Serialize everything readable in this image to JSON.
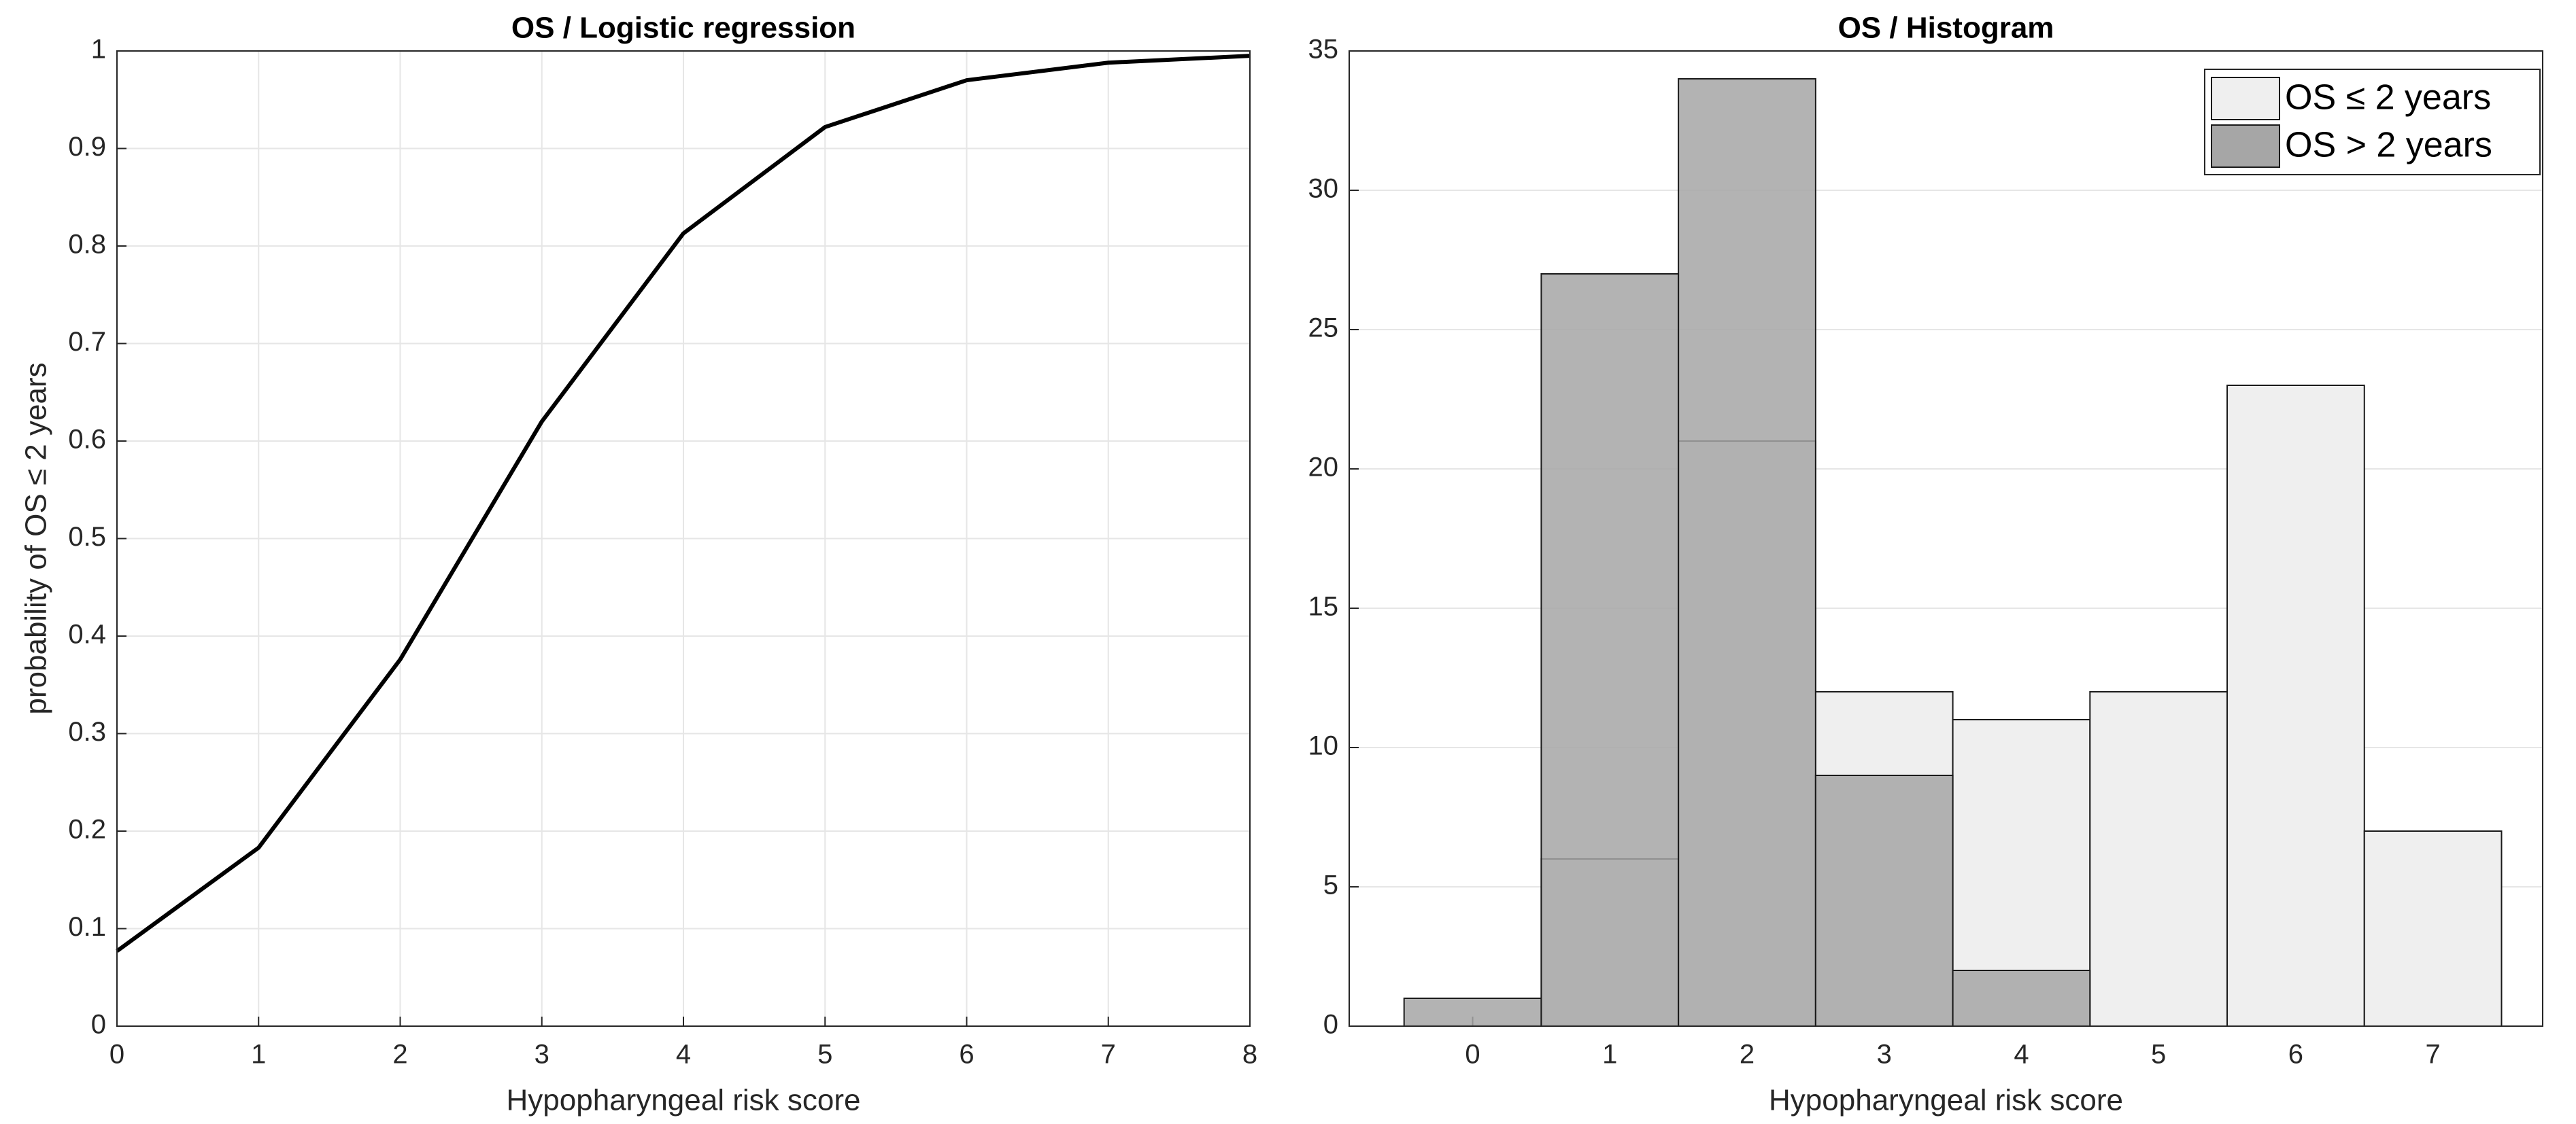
{
  "chart_data": [
    {
      "type": "line",
      "title": "OS / Logistic regression",
      "xlabel": "Hypopharyngeal risk score",
      "ylabel": "probability of OS ≤ 2 years",
      "x": [
        0,
        1,
        2,
        3,
        4,
        5,
        6,
        7,
        8
      ],
      "values": [
        0.077,
        0.183,
        0.376,
        0.62,
        0.813,
        0.922,
        0.97,
        0.988,
        0.995
      ],
      "color": "#000000",
      "xlim": [
        0,
        8
      ],
      "xticks": [
        0,
        1,
        2,
        3,
        4,
        5,
        6,
        7,
        8
      ],
      "ylim": [
        0,
        1
      ],
      "yticks": [
        0,
        0.1,
        0.2,
        0.3,
        0.4,
        0.5,
        0.6,
        0.7,
        0.8,
        0.9,
        1
      ],
      "grid": "both"
    },
    {
      "type": "histogram",
      "title": "OS / Histogram",
      "xlabel": "Hypopharyngeal risk score",
      "bins": [
        -0.5,
        0.5,
        1.5,
        2.5,
        3.5,
        4.5,
        5.5,
        6.5,
        7.5
      ],
      "series": [
        {
          "name": "OS ≤ 2 years",
          "color": "#efefef",
          "values": [
            0,
            6,
            21,
            12,
            11,
            12,
            23,
            7
          ]
        },
        {
          "name": "OS > 2 years",
          "color": "#a6a6a6",
          "values": [
            1,
            27,
            34,
            9,
            2,
            0,
            0,
            0
          ]
        }
      ],
      "xlim": [
        -0.9,
        7.8
      ],
      "xticks": [
        0,
        1,
        2,
        3,
        4,
        5,
        6,
        7
      ],
      "ylim": [
        0,
        35
      ],
      "yticks": [
        0,
        5,
        10,
        15,
        20,
        25,
        30,
        35
      ],
      "grid": "y",
      "legend": "top-right"
    }
  ]
}
